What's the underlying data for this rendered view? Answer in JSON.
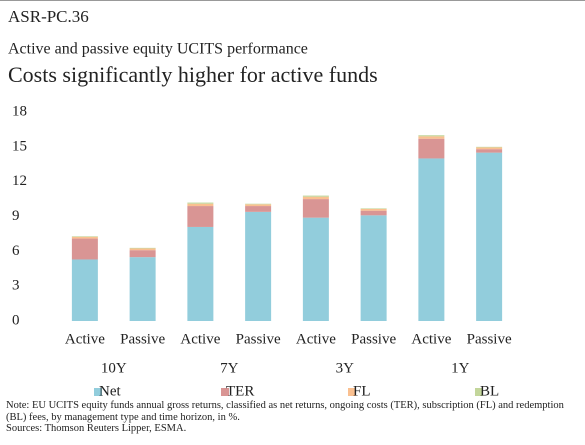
{
  "header": "ASR-PC.36",
  "chart_data": {
    "type": "stacked-bar",
    "subtitle": "Active and passive equity UCITS performance",
    "title": "Costs significantly higher for active funds",
    "categories": [
      "Active",
      "Passive",
      "Active",
      "Passive",
      "Active",
      "Passive",
      "Active",
      "Passive"
    ],
    "groups": [
      "10Y",
      "7Y",
      "3Y",
      "1Y"
    ],
    "series": [
      {
        "name": "Net",
        "color": "#92cddc",
        "values": [
          5.3,
          5.5,
          8.1,
          9.4,
          8.9,
          9.1,
          14.0,
          14.5
        ]
      },
      {
        "name": "TER",
        "color": "#d99594",
        "values": [
          1.8,
          0.6,
          1.8,
          0.5,
          1.6,
          0.4,
          1.7,
          0.3
        ]
      },
      {
        "name": "FL",
        "color": "#fac090",
        "values": [
          0.15,
          0.15,
          0.2,
          0.15,
          0.2,
          0.15,
          0.2,
          0.15
        ]
      },
      {
        "name": "BL",
        "color": "#c3d69b",
        "values": [
          0.05,
          0.05,
          0.1,
          0.05,
          0.1,
          0.05,
          0.1,
          0.05
        ]
      }
    ],
    "ylim": [
      0,
      18
    ],
    "yticks": [
      0,
      3,
      6,
      9,
      12,
      15,
      18
    ],
    "grid": false
  },
  "note": "Note: EU UCITS equity funds annual gross returns, classified as net returns, ongoing costs (TER), subscription (FL) and redemption (BL) fees, by management type and time horizon, in %.",
  "sources": "Sources: Thomson Reuters Lipper, ESMA."
}
